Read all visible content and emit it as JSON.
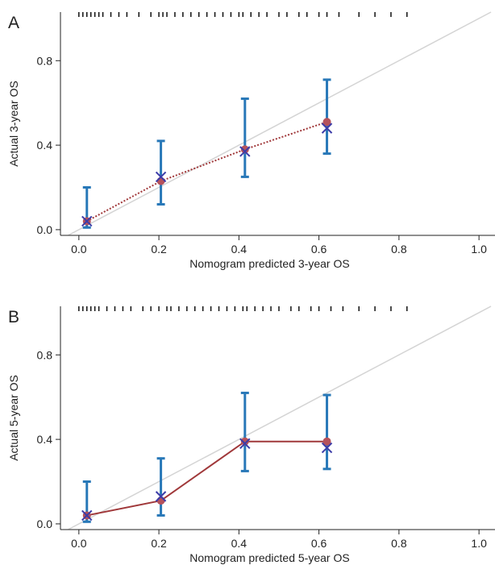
{
  "chart_data": [
    {
      "type": "calibration",
      "panel_label": "A",
      "xlabel": "Nomogram predicted 3-year OS",
      "ylabel": "Actual 3-year OS",
      "xlim": [
        -0.046,
        1.04
      ],
      "ylim": [
        -0.027,
        1.03
      ],
      "xticks": [
        {
          "value": 0,
          "label": "0.0"
        },
        0.2,
        0.4,
        0.6,
        0.8,
        {
          "value": 1,
          "label": "1.0"
        }
      ],
      "yticks": [
        {
          "value": 0,
          "label": "0.0"
        },
        0.4,
        0.8
      ],
      "x": [
        0.02,
        0.205,
        0.415,
        0.62
      ],
      "observed": [
        0.04,
        0.23,
        0.38,
        0.51
      ],
      "corrected": [
        0.04,
        0.25,
        0.37,
        0.48
      ],
      "lower": [
        0.01,
        0.12,
        0.25,
        0.36
      ],
      "upper": [
        0.2,
        0.42,
        0.62,
        0.71
      ],
      "rug": [
        0.0,
        0.01,
        0.02,
        0.03,
        0.04,
        0.05,
        0.06,
        0.08,
        0.1,
        0.12,
        0.15,
        0.18,
        0.2,
        0.21,
        0.22,
        0.24,
        0.26,
        0.28,
        0.3,
        0.32,
        0.34,
        0.36,
        0.38,
        0.4,
        0.41,
        0.43,
        0.45,
        0.47,
        0.5,
        0.52,
        0.55,
        0.57,
        0.6,
        0.62,
        0.65,
        0.7,
        0.74,
        0.78,
        0.82
      ],
      "line_style": "dotted",
      "bar_color": "#2878b8",
      "dot_color": "#b5525c",
      "cross_color": "#3c3ca8",
      "line_color": "#a0383a"
    },
    {
      "type": "calibration",
      "panel_label": "B",
      "xlabel": "Nomogram predicted 5-year OS",
      "ylabel": "Actual 5-year OS",
      "xlim": [
        -0.046,
        1.04
      ],
      "ylim": [
        -0.027,
        1.03
      ],
      "xticks": [
        {
          "value": 0,
          "label": "0.0"
        },
        0.2,
        0.4,
        0.6,
        0.8,
        {
          "value": 1,
          "label": "1.0"
        }
      ],
      "yticks": [
        {
          "value": 0,
          "label": "0.0"
        },
        0.4,
        0.8
      ],
      "x": [
        0.02,
        0.205,
        0.415,
        0.62
      ],
      "observed": [
        0.04,
        0.11,
        0.39,
        0.39
      ],
      "corrected": [
        0.04,
        0.13,
        0.38,
        0.36
      ],
      "lower": [
        0.01,
        0.04,
        0.25,
        0.26
      ],
      "upper": [
        0.2,
        0.31,
        0.62,
        0.61
      ],
      "rug": [
        0.0,
        0.01,
        0.02,
        0.03,
        0.04,
        0.05,
        0.07,
        0.09,
        0.11,
        0.13,
        0.16,
        0.18,
        0.2,
        0.22,
        0.23,
        0.25,
        0.27,
        0.29,
        0.31,
        0.33,
        0.35,
        0.37,
        0.39,
        0.41,
        0.42,
        0.44,
        0.46,
        0.48,
        0.5,
        0.53,
        0.55,
        0.58,
        0.6,
        0.63,
        0.66,
        0.7,
        0.74,
        0.78,
        0.82
      ],
      "line_style": "solid",
      "bar_color": "#2878b8",
      "dot_color": "#b5525c",
      "cross_color": "#3c3ca8",
      "line_color": "#a0383a"
    }
  ]
}
